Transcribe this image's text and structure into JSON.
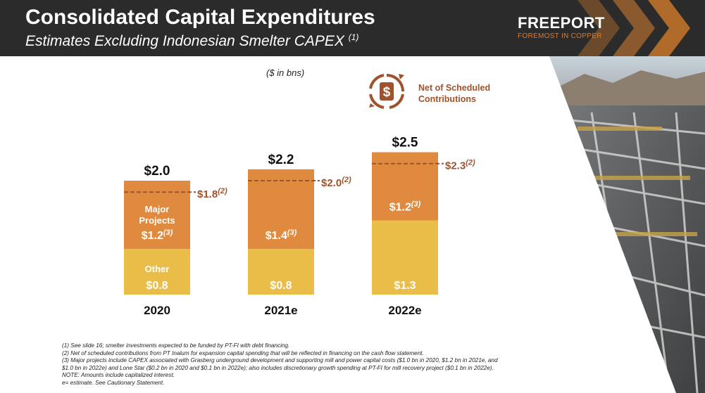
{
  "header": {
    "title": "Consolidated Capital Expenditures",
    "subtitle": "Estimates Excluding Indonesian Smelter CAPEX",
    "subtitle_note": "(1)",
    "logo": "FREEPORT",
    "tagline": "FOREMOST IN COPPER"
  },
  "legend": {
    "icon": "dollar-cycle-icon",
    "label_line1": "Net of Scheduled",
    "label_line2": "Contributions"
  },
  "colors": {
    "other": "#e9bd48",
    "major_projects": "#e08a40",
    "extra": "#f0a45a",
    "net_line": "#a0522d",
    "header_bg": "#2b2b2b",
    "brand_orange": "#e07a2c"
  },
  "chart_data": {
    "type": "bar",
    "stacked": true,
    "units": "($ in bns)",
    "categories": [
      "2020",
      "2021e",
      "2022e"
    ],
    "totals": [
      2.0,
      2.2,
      2.5
    ],
    "total_labels": [
      "$2.0",
      "$2.2",
      "$2.5"
    ],
    "series": [
      {
        "name": "Other",
        "values": [
          0.8,
          0.8,
          1.3
        ],
        "labels": [
          "$0.8",
          "$0.8",
          "$1.3"
        ]
      },
      {
        "name": "Major Projects",
        "values": [
          1.2,
          1.4,
          1.2
        ],
        "labels": [
          "$1.2",
          "$1.4",
          "$1.2"
        ],
        "note": "(3)"
      }
    ],
    "major_projects_label": [
      "Major",
      "Projects"
    ],
    "other_label": "Other",
    "net_of_contributions": [
      1.8,
      2.0,
      2.3
    ],
    "net_labels": [
      "$1.8",
      "$2.0",
      "$2.3"
    ],
    "net_note": "(2)",
    "ylim": [
      0,
      2.6
    ]
  },
  "footnotes": [
    "(1)   See slide 16; smelter investments expected to be funded by PT-FI with debt financing.",
    "(2)   Net of scheduled contributions from PT Inalum for expansion capital spending that will be reflected in financing on the cash flow statement.",
    "(3)   Major projects include CAPEX associated with Grasberg underground development and supporting mill and power capital costs ($1.0 bn in 2020, $1.2 bn in 2021e, and",
    "        $1.0 bn in 2022e) and Lone Star ($0.2 bn in 2020 and $0.1 bn in 2022e); also includes discretionary growth spending at PT-FI for mill recovery project ($0.1 bn in 2022e).",
    "NOTE: Amounts include capitalized interest.",
    "e= estimate. See Cautionary Statement."
  ]
}
